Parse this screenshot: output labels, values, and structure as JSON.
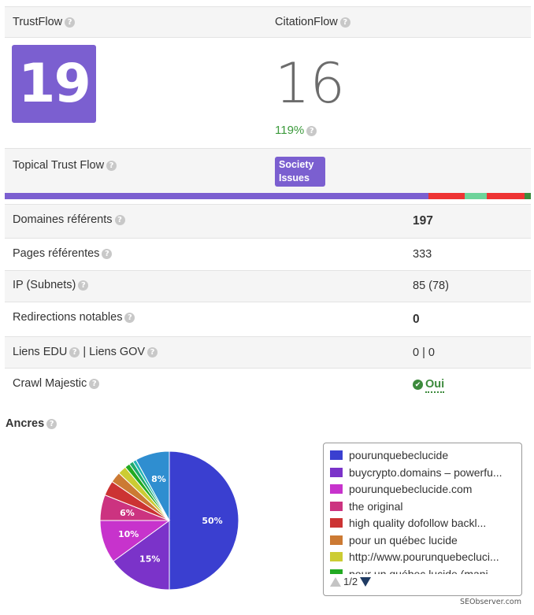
{
  "header": {
    "trustflow_label": "TrustFlow",
    "citationflow_label": "CitationFlow"
  },
  "metrics": {
    "trustflow_value": "19",
    "citationflow_value": "16",
    "ratio": "119%"
  },
  "topical": {
    "label": "Topical Trust Flow",
    "badge_line1": "Society",
    "badge_line2": "Issues",
    "bar_colors": [
      "#7b5fd0",
      "#ee3333",
      "#6dd39a",
      "#ee3333",
      "#3c8a3c"
    ]
  },
  "stats": {
    "domaines_label": "Domaines référents",
    "domaines_value": "197",
    "pages_label": "Pages référentes",
    "pages_value": "333",
    "ip_label": "IP (Subnets)",
    "ip_value": "85 (78)",
    "redirections_label": "Redirections notables",
    "redirections_value": "0",
    "edu_label": "Liens EDU",
    "gov_label": "Liens GOV",
    "edu_sep": "|",
    "edu_gov_value": "0 | 0",
    "crawl_label": "Crawl Majestic",
    "crawl_value": "Oui"
  },
  "ancres": {
    "title": "Ancres",
    "page_indicator": "1/2",
    "legend": [
      {
        "label": "pourunquebeclucide",
        "color": "#3a3fd0"
      },
      {
        "label": "buycrypto.domains – powerfu...",
        "color": "#7b33c9"
      },
      {
        "label": "pourunquebeclucide.com",
        "color": "#c733cc"
      },
      {
        "label": "the original",
        "color": "#cc3380"
      },
      {
        "label": "high quality dofollow backl...",
        "color": "#cc3333"
      },
      {
        "label": "pour un québec lucide",
        "color": "#cc7a33"
      },
      {
        "label": "http://www.pourunquebecluci...",
        "color": "#cccc33"
      },
      {
        "label": "pour un québec lucide (mani...",
        "color": "#22aa22"
      }
    ]
  },
  "chart_data": {
    "type": "pie",
    "slices": [
      {
        "name": "pourunquebeclucide",
        "value": 50,
        "label": "50%",
        "color": "#3a3fd0"
      },
      {
        "name": "buycrypto.domains – powerfu...",
        "value": 15,
        "label": "15%",
        "color": "#7b33c9"
      },
      {
        "name": "pourunquebeclucide.com",
        "value": 10,
        "label": "10%",
        "color": "#c733cc"
      },
      {
        "name": "the original",
        "value": 6,
        "label": "6%",
        "color": "#cc3380"
      },
      {
        "name": "high quality dofollow backl...",
        "value": 3.5,
        "label": "",
        "color": "#cc3333"
      },
      {
        "name": "pour un québec lucide",
        "value": 2.5,
        "label": "",
        "color": "#cc7a33"
      },
      {
        "name": "http://www.pourunquebecluci...",
        "value": 2,
        "label": "",
        "color": "#cccc33"
      },
      {
        "name": "pour un québec lucide (mani...",
        "value": 1.2,
        "label": "",
        "color": "#22aa22"
      },
      {
        "name": "",
        "value": 1,
        "label": "",
        "color": "#1faa6b"
      },
      {
        "name": "",
        "value": 0.8,
        "label": "",
        "color": "#22b5b5"
      },
      {
        "name": "",
        "value": 8,
        "label": "8%",
        "color": "#2f8ed0"
      }
    ]
  },
  "footer": {
    "credit": "SEObserver.com"
  }
}
